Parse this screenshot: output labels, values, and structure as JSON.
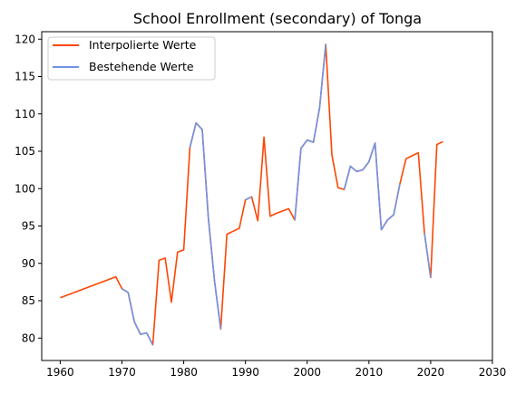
{
  "chart_data": {
    "type": "line",
    "title": "School Enrollment (secondary) of Tonga",
    "xlabel": "",
    "ylabel": "",
    "xlim": [
      1957,
      2030
    ],
    "ylim": [
      77.0,
      121.0
    ],
    "xticks": [
      1960,
      1970,
      1980,
      1990,
      2000,
      2010,
      2020,
      2030
    ],
    "yticks": [
      80,
      85,
      90,
      95,
      100,
      105,
      110,
      115,
      120
    ],
    "grid": false,
    "legend_position": "top-left",
    "series": [
      {
        "name": "Interpolierte Werte",
        "color": "#ff4500",
        "x": [
          1960,
          1969,
          1970,
          1971,
          1972,
          1973,
          1974,
          1975,
          1976,
          1977,
          1978,
          1979,
          1980,
          1981,
          1982,
          1983,
          1984,
          1985,
          1986,
          1987,
          1988,
          1989,
          1990,
          1991,
          1992,
          1993,
          1994,
          1995,
          1996,
          1997,
          1998,
          1999,
          2000,
          2001,
          2002,
          2003,
          2004,
          2005,
          2006,
          2007,
          2008,
          2009,
          2010,
          2011,
          2012,
          2013,
          2014,
          2015,
          2016,
          2017,
          2018,
          2019,
          2020,
          2021,
          2022
        ],
        "values": [
          85.4,
          88.2,
          86.6,
          86.1,
          82.2,
          80.5,
          80.7,
          79.1,
          90.4,
          90.7,
          84.8,
          91.5,
          91.8,
          105.5,
          108.8,
          107.9,
          96.0,
          87.6,
          81.2,
          93.9,
          94.3,
          94.7,
          98.5,
          98.9,
          95.7,
          106.9,
          96.3,
          96.7,
          97.0,
          97.3,
          95.8,
          105.4,
          106.5,
          106.2,
          110.8,
          119.3,
          104.5,
          100.1,
          99.9,
          103.0,
          102.3,
          102.5,
          103.6,
          106.1,
          94.5,
          95.8,
          96.5,
          100.6,
          104.0,
          104.4,
          104.8,
          94.0,
          88.1,
          105.9,
          106.3
        ]
      },
      {
        "name": "Bestehende Werte",
        "color": "#6f93e6",
        "segments": [
          {
            "x": [
              1970,
              1971,
              1972,
              1973,
              1974,
              1975
            ],
            "values": [
              86.6,
              86.1,
              82.2,
              80.5,
              80.7,
              79.1
            ]
          },
          {
            "x": [
              1981,
              1982,
              1983,
              1984,
              1985,
              1986
            ],
            "values": [
              105.5,
              108.8,
              107.9,
              96.0,
              87.6,
              81.2
            ]
          },
          {
            "x": [
              1990,
              1991
            ],
            "values": [
              98.5,
              98.9
            ]
          },
          {
            "x": [
              1998,
              1999,
              2000,
              2001,
              2002,
              2003
            ],
            "values": [
              95.8,
              105.4,
              106.5,
              106.2,
              110.8,
              119.3
            ]
          },
          {
            "x": [
              2006,
              2007,
              2008,
              2009,
              2010,
              2011,
              2012,
              2013,
              2014,
              2015
            ],
            "values": [
              99.9,
              103.0,
              102.3,
              102.5,
              103.6,
              106.1,
              94.5,
              95.8,
              96.5,
              100.6
            ]
          },
          {
            "x": [
              2019,
              2020
            ],
            "values": [
              94.0,
              88.1
            ]
          }
        ]
      }
    ]
  }
}
